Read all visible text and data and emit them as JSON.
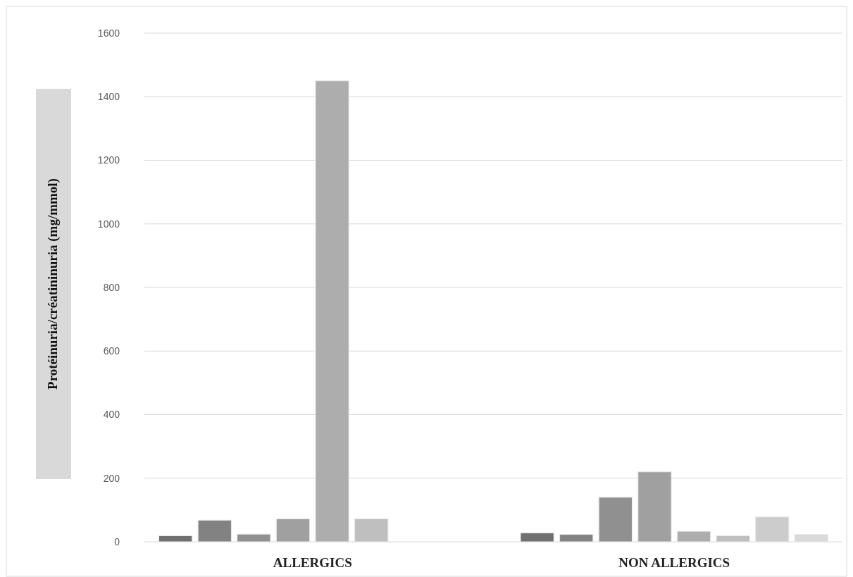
{
  "chart_data": {
    "type": "bar",
    "ylabel": "Protéinuria/créatininuria (mg/mmol)",
    "categories": [
      "ALLERGICS",
      "NON ALLERGICS"
    ],
    "series": [
      {
        "color": "#707070",
        "values": [
          19,
          28
        ]
      },
      {
        "color": "#828282",
        "values": [
          68,
          23
        ]
      },
      {
        "color": "#909090",
        "values": [
          24,
          140
        ]
      },
      {
        "color": "#a0a0a0",
        "values": [
          72,
          220
        ]
      },
      {
        "color": "#adadad",
        "values": [
          1450,
          33
        ]
      },
      {
        "color": "#bfbfbf",
        "values": [
          72,
          19
        ]
      },
      {
        "color": "#cccccc",
        "values": [
          null,
          78
        ]
      },
      {
        "color": "#dadada",
        "values": [
          null,
          23
        ]
      }
    ],
    "ylim": [
      0,
      1600
    ],
    "yticks": [
      0,
      200,
      400,
      600,
      800,
      1000,
      1200,
      1400,
      1600
    ],
    "grid": "y"
  }
}
